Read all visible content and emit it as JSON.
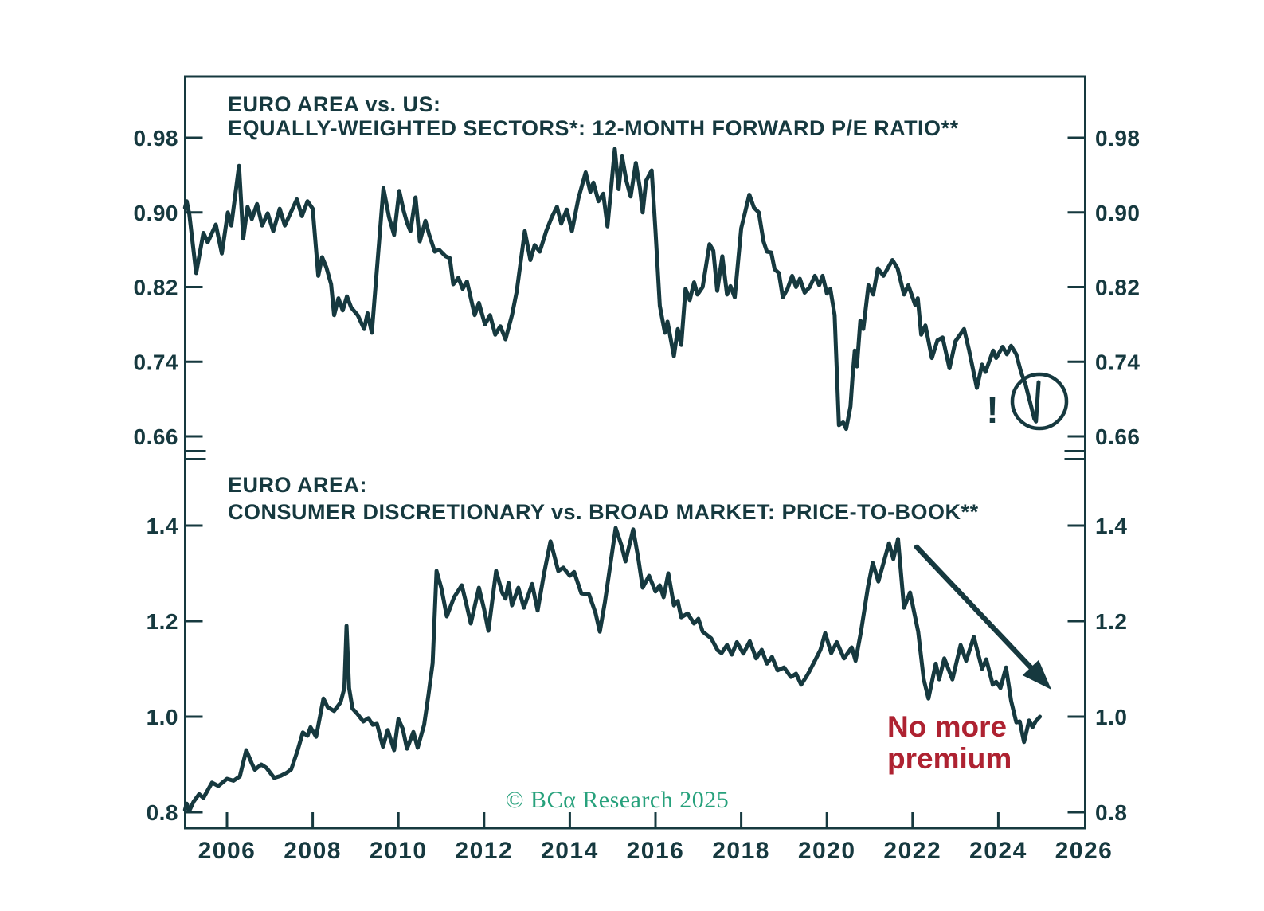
{
  "colors": {
    "line": "#16393f",
    "text": "#16393f",
    "red": "#ae2231",
    "green": "#27a17c",
    "background": "#ffffff"
  },
  "annotations": {
    "exclamation": "!",
    "premium_line1": "No more",
    "premium_line2": "premium",
    "copyright": "© BCα Research 2025"
  },
  "x_axis": {
    "range": [
      2005.02,
      2026.03
    ],
    "tick_years": [
      2006,
      2008,
      2010,
      2012,
      2014,
      2016,
      2018,
      2020,
      2022,
      2024,
      2026
    ],
    "tick_labels": [
      "2006",
      "2008",
      "2010",
      "2012",
      "2014",
      "2016",
      "2018",
      "2020",
      "2022",
      "2024",
      "2026"
    ]
  },
  "chart_data": [
    {
      "type": "line",
      "panel": "top",
      "title_line1": "EURO AREA vs. US:",
      "title_line2": "EQUALLY-WEIGHTED SECTORS*: 12-MONTH FORWARD P/E RATIO**",
      "ylim": [
        0.645,
        0.998
      ],
      "yticks": [
        0.98,
        0.9,
        0.82,
        0.74,
        0.66
      ],
      "ytick_labels": [
        "0.98",
        "0.90",
        "0.82",
        "0.74",
        "0.66"
      ],
      "grid": false,
      "legend": null,
      "annotations": [
        {
          "type": "text",
          "label": "!",
          "x": 2023.85,
          "y": 0.7
        },
        {
          "type": "circle",
          "x": 2024.9,
          "y": 0.705,
          "note": "circle around final drop of ratio"
        }
      ],
      "x": [
        2005.02,
        2005.06,
        2005.12,
        2005.28,
        2005.45,
        2005.55,
        2005.74,
        2005.88,
        2006.02,
        2006.1,
        2006.28,
        2006.38,
        2006.48,
        2006.58,
        2006.7,
        2006.82,
        2006.95,
        2007.08,
        2007.23,
        2007.35,
        2007.5,
        2007.63,
        2007.75,
        2007.88,
        2008.0,
        2008.13,
        2008.22,
        2008.32,
        2008.43,
        2008.5,
        2008.6,
        2008.7,
        2008.8,
        2008.9,
        2009.05,
        2009.2,
        2009.28,
        2009.38,
        2009.5,
        2009.65,
        2009.78,
        2009.9,
        2010.02,
        2010.12,
        2010.2,
        2010.28,
        2010.4,
        2010.5,
        2010.63,
        2010.72,
        2010.85,
        2010.95,
        2011.1,
        2011.2,
        2011.28,
        2011.4,
        2011.5,
        2011.6,
        2011.78,
        2011.88,
        2012.02,
        2012.14,
        2012.26,
        2012.38,
        2012.5,
        2012.65,
        2012.76,
        2012.95,
        2013.08,
        2013.18,
        2013.3,
        2013.45,
        2013.58,
        2013.7,
        2013.8,
        2013.93,
        2014.05,
        2014.2,
        2014.37,
        2014.48,
        2014.55,
        2014.67,
        2014.78,
        2014.88,
        2015.05,
        2015.14,
        2015.22,
        2015.32,
        2015.42,
        2015.54,
        2015.64,
        2015.7,
        2015.78,
        2015.91,
        2016.0,
        2016.1,
        2016.22,
        2016.28,
        2016.36,
        2016.43,
        2016.52,
        2016.6,
        2016.7,
        2016.8,
        2016.9,
        2016.98,
        2017.1,
        2017.26,
        2017.35,
        2017.44,
        2017.56,
        2017.67,
        2017.75,
        2017.85,
        2018.0,
        2018.19,
        2018.3,
        2018.41,
        2018.52,
        2018.6,
        2018.7,
        2018.78,
        2018.88,
        2018.97,
        2019.08,
        2019.19,
        2019.28,
        2019.37,
        2019.48,
        2019.6,
        2019.72,
        2019.82,
        2019.9,
        2020.0,
        2020.08,
        2020.18,
        2020.28,
        2020.38,
        2020.45,
        2020.55,
        2020.6,
        2020.65,
        2020.7,
        2020.78,
        2020.85,
        2020.97,
        2021.08,
        2021.19,
        2021.32,
        2021.53,
        2021.65,
        2021.8,
        2021.9,
        2022.06,
        2022.12,
        2022.2,
        2022.3,
        2022.45,
        2022.58,
        2022.7,
        2022.86,
        2023.0,
        2023.2,
        2023.32,
        2023.5,
        2023.62,
        2023.7,
        2023.88,
        2023.95,
        2024.1,
        2024.2,
        2024.3,
        2024.42,
        2024.53,
        2024.64,
        2024.75,
        2024.84,
        2024.88,
        2024.94
      ],
      "values": [
        0.905,
        0.912,
        0.898,
        0.835,
        0.878,
        0.868,
        0.887,
        0.856,
        0.9,
        0.886,
        0.95,
        0.872,
        0.906,
        0.893,
        0.909,
        0.886,
        0.899,
        0.88,
        0.904,
        0.886,
        0.901,
        0.914,
        0.896,
        0.912,
        0.904,
        0.832,
        0.852,
        0.841,
        0.823,
        0.79,
        0.808,
        0.795,
        0.81,
        0.798,
        0.79,
        0.775,
        0.792,
        0.771,
        0.84,
        0.926,
        0.895,
        0.876,
        0.923,
        0.902,
        0.889,
        0.88,
        0.916,
        0.869,
        0.891,
        0.876,
        0.858,
        0.86,
        0.853,
        0.851,
        0.823,
        0.83,
        0.818,
        0.826,
        0.79,
        0.803,
        0.78,
        0.79,
        0.769,
        0.778,
        0.764,
        0.79,
        0.815,
        0.88,
        0.849,
        0.865,
        0.858,
        0.88,
        0.895,
        0.906,
        0.888,
        0.903,
        0.88,
        0.915,
        0.943,
        0.922,
        0.932,
        0.912,
        0.92,
        0.885,
        0.968,
        0.925,
        0.96,
        0.934,
        0.917,
        0.953,
        0.925,
        0.9,
        0.934,
        0.945,
        0.88,
        0.8,
        0.771,
        0.783,
        0.763,
        0.746,
        0.775,
        0.758,
        0.818,
        0.806,
        0.825,
        0.812,
        0.82,
        0.866,
        0.859,
        0.816,
        0.853,
        0.812,
        0.821,
        0.809,
        0.883,
        0.919,
        0.905,
        0.9,
        0.869,
        0.858,
        0.857,
        0.839,
        0.835,
        0.809,
        0.818,
        0.832,
        0.82,
        0.829,
        0.814,
        0.82,
        0.832,
        0.822,
        0.832,
        0.813,
        0.818,
        0.79,
        0.672,
        0.675,
        0.668,
        0.692,
        0.725,
        0.752,
        0.735,
        0.784,
        0.775,
        0.822,
        0.812,
        0.84,
        0.832,
        0.849,
        0.84,
        0.812,
        0.822,
        0.801,
        0.808,
        0.769,
        0.779,
        0.744,
        0.763,
        0.766,
        0.733,
        0.762,
        0.775,
        0.752,
        0.712,
        0.737,
        0.729,
        0.752,
        0.744,
        0.756,
        0.748,
        0.757,
        0.748,
        0.729,
        0.715,
        0.695,
        0.679,
        0.676,
        0.718
      ]
    },
    {
      "type": "line",
      "panel": "bottom",
      "title_line1": "EURO AREA:",
      "title_line2": "CONSUMER DISCRETIONARY vs. BROAD MARKET: PRICE-TO-BOOK**",
      "ylim": [
        0.77,
        1.435
      ],
      "yticks": [
        1.4,
        1.2,
        1.0,
        0.8
      ],
      "ytick_labels": [
        "1.4",
        "1.2",
        "1.0",
        "0.8"
      ],
      "grid": false,
      "legend": null,
      "annotations": [
        {
          "type": "arrow",
          "from": {
            "x": 2021.9,
            "y": 1.355
          },
          "to": {
            "x": 2025.2,
            "y": 1.057
          }
        },
        {
          "type": "text",
          "label": "No more premium",
          "x": 2021.4,
          "y": 0.97,
          "color": "red"
        }
      ],
      "x": [
        2005.02,
        2005.06,
        2005.12,
        2005.22,
        2005.35,
        2005.45,
        2005.65,
        2005.8,
        2006.0,
        2006.15,
        2006.3,
        2006.45,
        2006.58,
        2006.65,
        2006.8,
        2006.92,
        2007.1,
        2007.25,
        2007.4,
        2007.5,
        2007.65,
        2007.77,
        2007.88,
        2007.95,
        2008.08,
        2008.25,
        2008.35,
        2008.5,
        2008.65,
        2008.74,
        2008.79,
        2008.85,
        2008.93,
        2009.05,
        2009.18,
        2009.3,
        2009.4,
        2009.5,
        2009.64,
        2009.75,
        2009.9,
        2010.0,
        2010.1,
        2010.2,
        2010.35,
        2010.45,
        2010.6,
        2010.7,
        2010.8,
        2010.89,
        2011.0,
        2011.13,
        2011.3,
        2011.48,
        2011.6,
        2011.69,
        2011.88,
        2012.0,
        2012.1,
        2012.28,
        2012.42,
        2012.5,
        2012.57,
        2012.65,
        2012.8,
        2012.93,
        2013.12,
        2013.25,
        2013.4,
        2013.55,
        2013.73,
        2013.85,
        2014.0,
        2014.1,
        2014.27,
        2014.45,
        2014.6,
        2014.7,
        2014.82,
        2015.07,
        2015.2,
        2015.3,
        2015.48,
        2015.6,
        2015.7,
        2015.85,
        2016.0,
        2016.1,
        2016.19,
        2016.3,
        2016.43,
        2016.52,
        2016.6,
        2016.75,
        2016.9,
        2017.0,
        2017.1,
        2017.3,
        2017.45,
        2017.54,
        2017.67,
        2017.78,
        2017.9,
        2018.05,
        2018.2,
        2018.35,
        2018.48,
        2018.6,
        2018.72,
        2018.85,
        2019.0,
        2019.16,
        2019.28,
        2019.4,
        2019.55,
        2019.72,
        2019.85,
        2019.96,
        2020.1,
        2020.23,
        2020.4,
        2020.58,
        2020.67,
        2020.8,
        2020.96,
        2021.07,
        2021.2,
        2021.45,
        2021.55,
        2021.66,
        2021.8,
        2021.94,
        2022.13,
        2022.26,
        2022.37,
        2022.54,
        2022.62,
        2022.74,
        2022.93,
        2023.12,
        2023.25,
        2023.43,
        2023.62,
        2023.72,
        2023.87,
        2023.95,
        2024.05,
        2024.18,
        2024.3,
        2024.42,
        2024.5,
        2024.6,
        2024.72,
        2024.8,
        2024.87,
        2024.97
      ],
      "values": [
        0.805,
        0.818,
        0.803,
        0.822,
        0.838,
        0.83,
        0.862,
        0.855,
        0.87,
        0.866,
        0.875,
        0.93,
        0.902,
        0.889,
        0.9,
        0.893,
        0.872,
        0.876,
        0.883,
        0.89,
        0.93,
        0.967,
        0.96,
        0.978,
        0.958,
        1.038,
        1.02,
        1.012,
        1.03,
        1.06,
        1.19,
        1.06,
        1.017,
        1.005,
        0.99,
        0.997,
        0.983,
        0.985,
        0.937,
        0.972,
        0.93,
        0.995,
        0.975,
        0.933,
        0.968,
        0.935,
        0.983,
        1.045,
        1.112,
        1.305,
        1.27,
        1.21,
        1.25,
        1.275,
        1.23,
        1.195,
        1.27,
        1.225,
        1.18,
        1.305,
        1.26,
        1.247,
        1.28,
        1.233,
        1.27,
        1.228,
        1.278,
        1.222,
        1.3,
        1.367,
        1.305,
        1.312,
        1.295,
        1.303,
        1.258,
        1.256,
        1.217,
        1.178,
        1.24,
        1.395,
        1.36,
        1.325,
        1.392,
        1.33,
        1.27,
        1.295,
        1.262,
        1.275,
        1.25,
        1.3,
        1.233,
        1.242,
        1.208,
        1.216,
        1.195,
        1.205,
        1.178,
        1.164,
        1.139,
        1.133,
        1.15,
        1.13,
        1.156,
        1.132,
        1.158,
        1.122,
        1.14,
        1.111,
        1.125,
        1.097,
        1.103,
        1.083,
        1.09,
        1.067,
        1.088,
        1.117,
        1.14,
        1.175,
        1.133,
        1.156,
        1.122,
        1.145,
        1.117,
        1.18,
        1.272,
        1.322,
        1.283,
        1.363,
        1.33,
        1.372,
        1.228,
        1.26,
        1.178,
        1.078,
        1.038,
        1.111,
        1.078,
        1.122,
        1.078,
        1.15,
        1.117,
        1.167,
        1.1,
        1.12,
        1.067,
        1.073,
        1.06,
        1.103,
        1.033,
        0.988,
        0.99,
        0.947,
        0.992,
        0.978,
        0.99,
        1.0
      ]
    }
  ]
}
